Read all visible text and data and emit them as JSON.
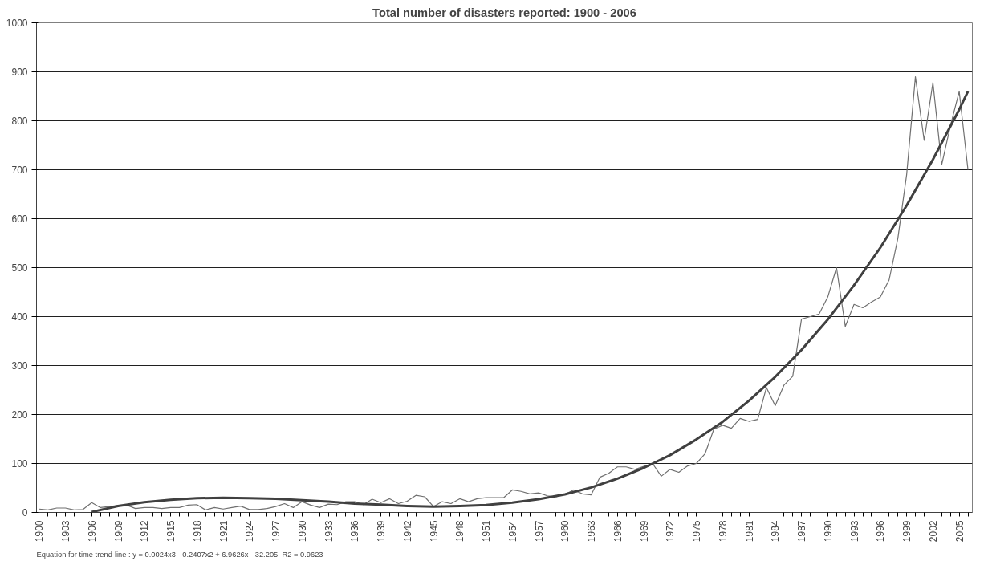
{
  "chart_data": {
    "type": "line",
    "title": "Total number of disasters reported: 1900 - 2006",
    "annotations": [
      "Equation for time trend-line : y = 0.0024x3 - 0.2407x2 + 6.9626x - 32.205; R2 = 0.9623"
    ],
    "xlim": [
      1899.7,
      2006.5
    ],
    "ylim": [
      0,
      1000
    ],
    "yticks": [
      0,
      100,
      200,
      300,
      400,
      500,
      600,
      700,
      800,
      900,
      1000
    ],
    "xticks": [
      1900,
      {
        "value": 1901,
        "label": null
      },
      {
        "value": 1902,
        "label": null
      },
      1903,
      {
        "value": 1904,
        "label": null
      },
      {
        "value": 1905,
        "label": null
      },
      1906,
      {
        "value": 1907,
        "label": null
      },
      {
        "value": 1908,
        "label": null
      },
      1909,
      {
        "value": 1910,
        "label": null
      },
      {
        "value": 1911,
        "label": null
      },
      1912,
      {
        "value": 1913,
        "label": null
      },
      {
        "value": 1914,
        "label": null
      },
      1915,
      {
        "value": 1916,
        "label": null
      },
      {
        "value": 1917,
        "label": null
      },
      1918,
      {
        "value": 1919,
        "label": null
      },
      {
        "value": 1920,
        "label": null
      },
      1921,
      {
        "value": 1922,
        "label": null
      },
      {
        "value": 1923,
        "label": null
      },
      1924,
      {
        "value": 1925,
        "label": null
      },
      {
        "value": 1926,
        "label": null
      },
      1927,
      {
        "value": 1928,
        "label": null
      },
      {
        "value": 1929,
        "label": null
      },
      1930,
      {
        "value": 1931,
        "label": null
      },
      {
        "value": 1932,
        "label": null
      },
      1933,
      {
        "value": 1934,
        "label": null
      },
      {
        "value": 1935,
        "label": null
      },
      1936,
      {
        "value": 1937,
        "label": null
      },
      {
        "value": 1938,
        "label": null
      },
      1939,
      {
        "value": 1940,
        "label": null
      },
      {
        "value": 1941,
        "label": null
      },
      1942,
      {
        "value": 1943,
        "label": null
      },
      {
        "value": 1944,
        "label": null
      },
      1945,
      {
        "value": 1946,
        "label": null
      },
      {
        "value": 1947,
        "label": null
      },
      1948,
      {
        "value": 1949,
        "label": null
      },
      {
        "value": 1950,
        "label": null
      },
      1951,
      {
        "value": 1952,
        "label": null
      },
      {
        "value": 1953,
        "label": null
      },
      1954,
      {
        "value": 1955,
        "label": null
      },
      {
        "value": 1956,
        "label": null
      },
      1957,
      {
        "value": 1958,
        "label": null
      },
      {
        "value": 1959,
        "label": null
      },
      1960,
      {
        "value": 1961,
        "label": null
      },
      {
        "value": 1962,
        "label": null
      },
      1963,
      {
        "value": 1964,
        "label": null
      },
      {
        "value": 1965,
        "label": null
      },
      1966,
      {
        "value": 1967,
        "label": null
      },
      {
        "value": 1968,
        "label": null
      },
      1969,
      {
        "value": 1970,
        "label": null
      },
      {
        "value": 1971,
        "label": null
      },
      1972,
      {
        "value": 1973,
        "label": null
      },
      {
        "value": 1974,
        "label": null
      },
      1975,
      {
        "value": 1976,
        "label": null
      },
      {
        "value": 1977,
        "label": null
      },
      1978,
      {
        "value": 1979,
        "label": null
      },
      {
        "value": 1980,
        "label": null
      },
      1981,
      {
        "value": 1982,
        "label": null
      },
      {
        "value": 1983,
        "label": null
      },
      1984,
      {
        "value": 1985,
        "label": null
      },
      {
        "value": 1986,
        "label": null
      },
      1987,
      {
        "value": 1988,
        "label": null
      },
      {
        "value": 1989,
        "label": null
      },
      1990,
      {
        "value": 1991,
        "label": null
      },
      {
        "value": 1992,
        "label": null
      },
      1993,
      {
        "value": 1994,
        "label": null
      },
      {
        "value": 1995,
        "label": null
      },
      1996,
      {
        "value": 1997,
        "label": null
      },
      {
        "value": 1998,
        "label": null
      },
      1999,
      {
        "value": 2000,
        "label": null
      },
      {
        "value": 2001,
        "label": null
      },
      2002,
      {
        "value": 2003,
        "label": null
      },
      {
        "value": 2004,
        "label": null
      },
      2005,
      {
        "value": 2006,
        "label": null
      }
    ],
    "grid": "y",
    "marker": "none",
    "line_style": "solid",
    "series": [
      {
        "color": "#707070",
        "x": [
          1900,
          1901,
          1902,
          1903,
          1904,
          1905,
          1906,
          1907,
          1908,
          1909,
          1910,
          1911,
          1912,
          1913,
          1914,
          1915,
          1916,
          1917,
          1918,
          1919,
          1920,
          1921,
          1922,
          1923,
          1924,
          1925,
          1926,
          1927,
          1928,
          1929,
          1930,
          1931,
          1932,
          1933,
          1934,
          1935,
          1936,
          1937,
          1938,
          1939,
          1940,
          1941,
          1942,
          1943,
          1944,
          1945,
          1946,
          1947,
          1948,
          1949,
          1950,
          1951,
          1952,
          1953,
          1954,
          1955,
          1956,
          1957,
          1958,
          1959,
          1960,
          1961,
          1962,
          1963,
          1964,
          1965,
          1966,
          1967,
          1968,
          1969,
          1970,
          1971,
          1972,
          1973,
          1974,
          1975,
          1976,
          1977,
          1978,
          1979,
          1980,
          1981,
          1982,
          1983,
          1984,
          1985,
          1986,
          1987,
          1988,
          1989,
          1990,
          1991,
          1992,
          1993,
          1994,
          1995,
          1996,
          1997,
          1998,
          1999,
          2000,
          2001,
          2002,
          2003,
          2004,
          2005,
          2006
        ],
        "values": [
          7,
          5,
          9,
          9,
          5,
          6,
          20,
          10,
          12,
          14,
          15,
          8,
          10,
          10,
          8,
          10,
          10,
          15,
          16,
          5,
          10,
          7,
          10,
          13,
          6,
          6,
          8,
          12,
          18,
          10,
          22,
          15,
          10,
          17,
          16,
          22,
          22,
          16,
          27,
          20,
          28,
          18,
          23,
          35,
          32,
          12,
          22,
          18,
          28,
          22,
          28,
          30,
          30,
          30,
          46,
          43,
          38,
          40,
          34,
          32,
          37,
          46,
          38,
          36,
          72,
          80,
          93,
          93,
          88,
          94,
          100,
          74,
          88,
          82,
          95,
          100,
          120,
          170,
          178,
          172,
          192,
          186,
          190,
          255,
          218,
          260,
          278,
          395,
          400,
          405,
          440,
          500,
          380,
          425,
          418,
          430,
          440,
          475,
          560,
          690,
          890,
          760,
          878,
          710,
          790,
          860,
          700
        ]
      },
      {
        "type": "line",
        "color": "#404040",
        "x": [
          1906,
          1909,
          1912,
          1915,
          1918,
          1921,
          1924,
          1927,
          1930,
          1933,
          1936,
          1939,
          1942,
          1945,
          1948,
          1951,
          1954,
          1957,
          1960,
          1963,
          1966,
          1969,
          1972,
          1975,
          1978,
          1981,
          1984,
          1987,
          1990,
          1993,
          1996,
          1999,
          2002,
          2005,
          2006
        ],
        "values": [
          1,
          13,
          21,
          26,
          29,
          30,
          29,
          28,
          25,
          22,
          18,
          16,
          13,
          12,
          13,
          15,
          20,
          27,
          37,
          51,
          69,
          91,
          117,
          149,
          185,
          228,
          277,
          332,
          394,
          464,
          541,
          627,
          721,
          823,
          860
        ]
      }
    ]
  }
}
